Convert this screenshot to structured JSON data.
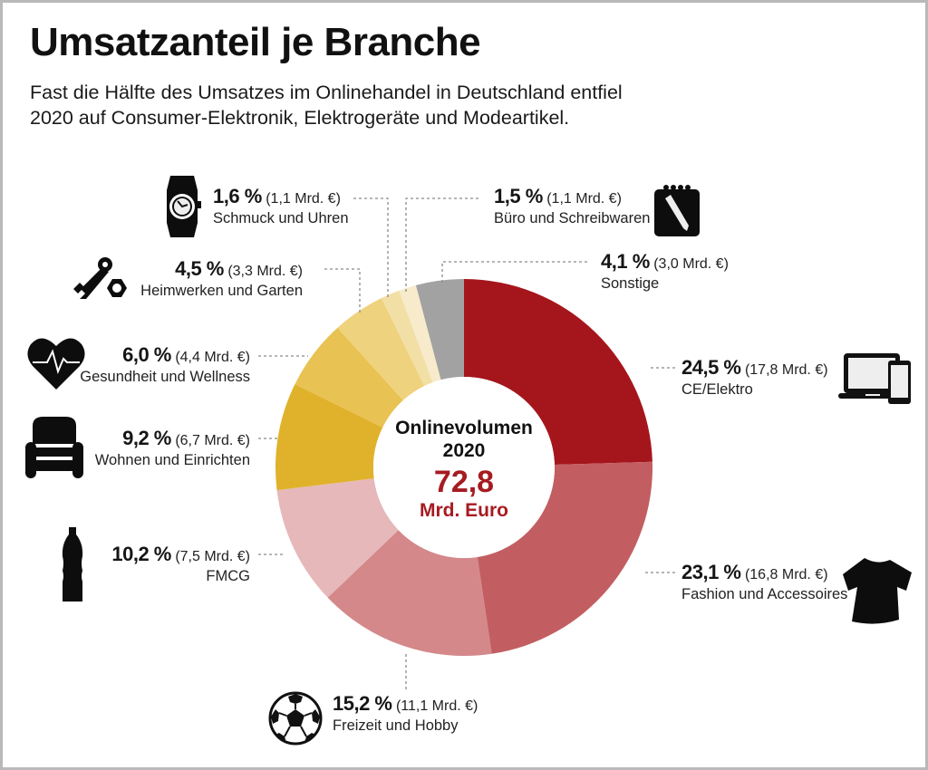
{
  "header": {
    "title": "Umsatzanteil je Branche",
    "subtitle_line1": "Fast die Hälfte des Umsatzes im Onlinehandel in Deutschland entfiel",
    "subtitle_line2": "2020 auf Consumer-Elektronik, Elektrogeräte und Modeartikel."
  },
  "center": {
    "line1": "Onlinevolumen",
    "line2": "2020",
    "value": "72,8",
    "unit": "Mrd. Euro"
  },
  "chart_data": {
    "type": "pie",
    "variant": "donut",
    "title": "Umsatzanteil je Branche",
    "total": 72.8,
    "total_unit": "Mrd. Euro",
    "start": "12 o'clock, clockwise",
    "slices": [
      {
        "name": "CE/Elektro",
        "percent": 24.5,
        "percent_label": "24,5 %",
        "amount": 17.8,
        "amount_label": "(17,8 Mrd. €)",
        "color": "#a5161c",
        "icon": "devices-icon"
      },
      {
        "name": "Fashion und Accessoires",
        "percent": 23.1,
        "percent_label": "23,1 %",
        "amount": 16.8,
        "amount_label": "(16,8 Mrd. €)",
        "color": "#c25e61",
        "icon": "tshirt-icon"
      },
      {
        "name": "Freizeit und Hobby",
        "percent": 15.2,
        "percent_label": "15,2 %",
        "amount": 11.1,
        "amount_label": "(11,1 Mrd. €)",
        "color": "#d4888a",
        "icon": "soccer-ball-icon"
      },
      {
        "name": "FMCG",
        "percent": 10.2,
        "percent_label": "10,2 %",
        "amount": 7.5,
        "amount_label": "(7,5 Mrd. €)",
        "color": "#e6b8ba",
        "icon": "bottle-icon"
      },
      {
        "name": "Wohnen und Einrichten",
        "percent": 9.2,
        "percent_label": "9,2 %",
        "amount": 6.7,
        "amount_label": "(6,7 Mrd. €)",
        "color": "#e0b22b",
        "icon": "armchair-icon"
      },
      {
        "name": "Gesundheit und Wellness",
        "percent": 6.0,
        "percent_label": "6,0 %",
        "amount": 4.4,
        "amount_label": "(4,4 Mrd. €)",
        "color": "#e8c252",
        "icon": "heart-pulse-icon"
      },
      {
        "name": "Heimwerken und Garten",
        "percent": 4.5,
        "percent_label": "4,5 %",
        "amount": 3.3,
        "amount_label": "(3,3 Mrd. €)",
        "color": "#efd27e",
        "icon": "wrench-nut-icon"
      },
      {
        "name": "Schmuck und Uhren",
        "percent": 1.6,
        "percent_label": "1,6 %",
        "amount": 1.1,
        "amount_label": "(1,1 Mrd. €)",
        "color": "#f2dfa6",
        "icon": "watch-icon"
      },
      {
        "name": "Büro und Schreibwaren",
        "percent": 1.5,
        "percent_label": "1,5 %",
        "amount": 1.1,
        "amount_label": "(1,1 Mrd. €)",
        "color": "#f7ebcc",
        "icon": "notepad-pen-icon"
      },
      {
        "name": "Sonstige",
        "percent": 4.1,
        "percent_label": "4,1 %",
        "amount": 3.0,
        "amount_label": "(3,0 Mrd. €)",
        "color": "#a2a2a2",
        "icon": null
      }
    ]
  }
}
